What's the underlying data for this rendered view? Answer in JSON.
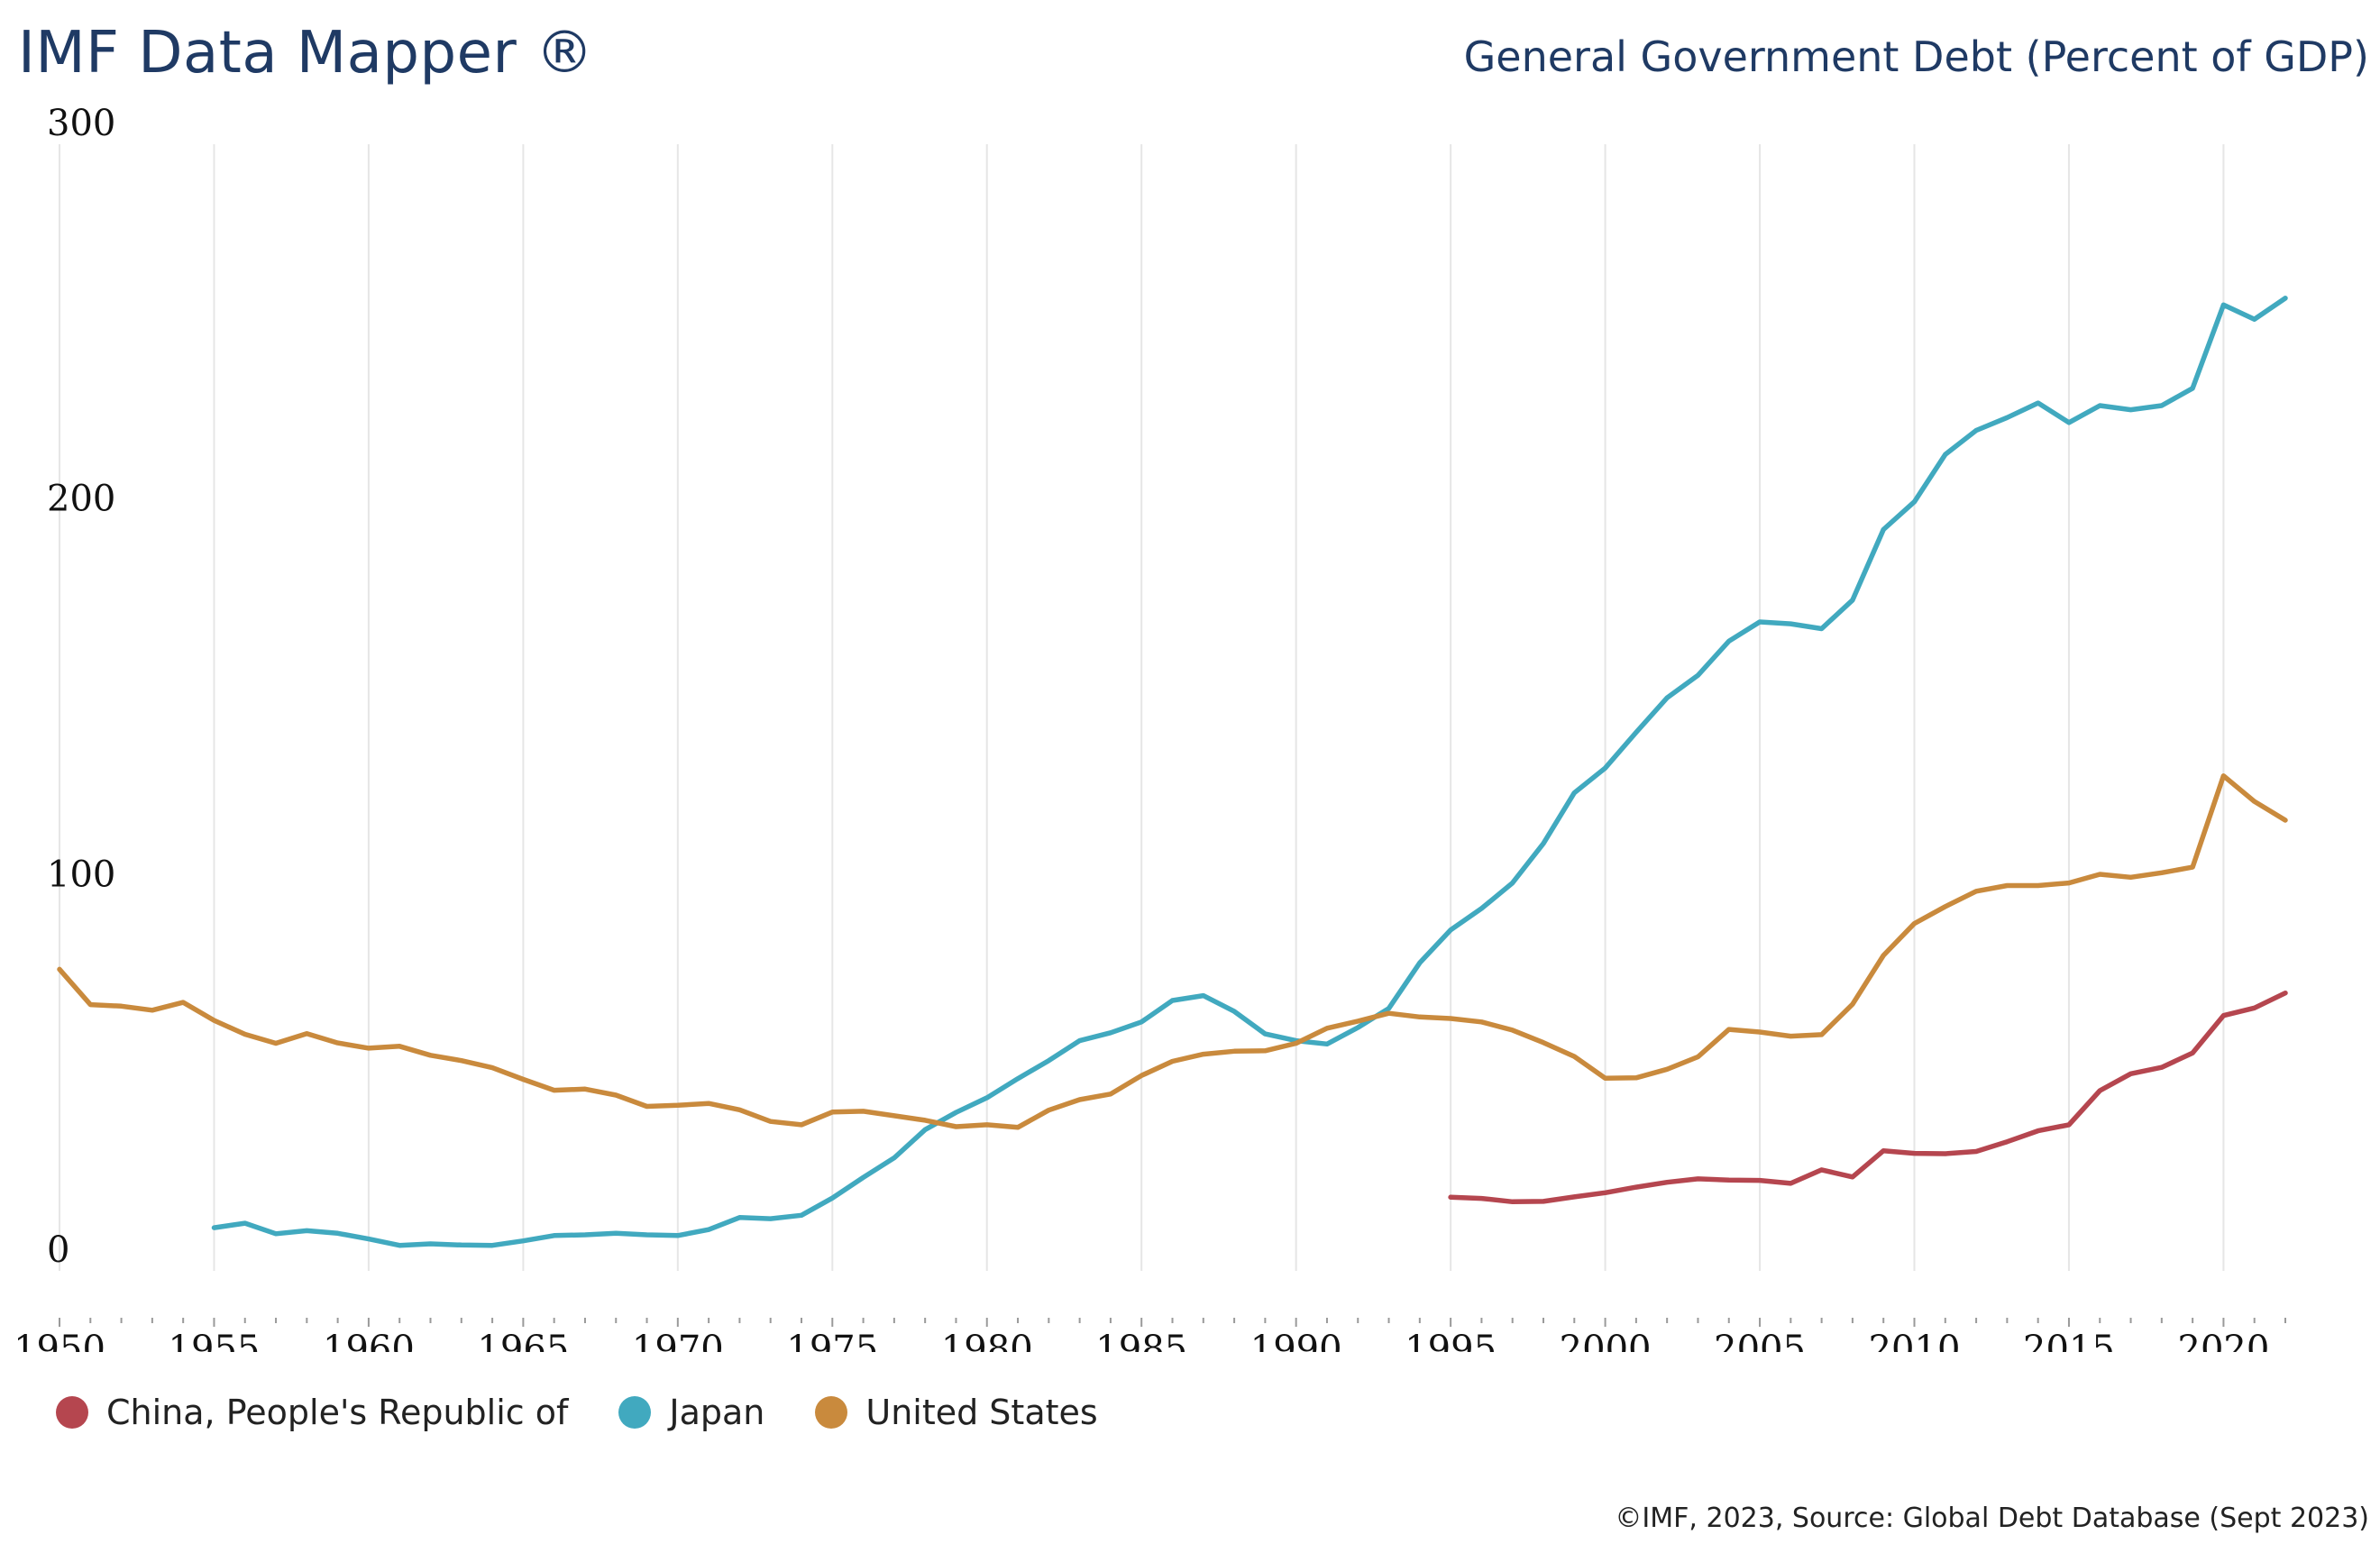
{
  "header": {
    "brand": "IMF Data Mapper ®",
    "subtitle": "General Government Debt (Percent of GDP)"
  },
  "footer": {
    "credit": "©IMF, 2023, Source: Global Debt Database (Sept 2023)"
  },
  "legend": {
    "items": [
      {
        "label": "China, People's Republic of",
        "color": "#b5464f"
      },
      {
        "label": "Japan",
        "color": "#41a9bf"
      },
      {
        "label": "United States",
        "color": "#c98a3d"
      }
    ]
  },
  "chart_data": {
    "type": "line",
    "title": "General Government Debt (Percent of GDP)",
    "xlabel": "",
    "ylabel": "",
    "xlim": [
      1950,
      2022
    ],
    "ylim": [
      0,
      300
    ],
    "grid": "vertical",
    "legend_position": "bottom-left",
    "x_ticks": [
      "1950",
      "1955",
      "1960",
      "1965",
      "1970",
      "1975",
      "1980",
      "1985",
      "1990",
      "1995",
      "2000",
      "2005",
      "2010",
      "2015",
      "2020"
    ],
    "y_ticks": [
      "0",
      "100",
      "200",
      "300"
    ],
    "series": [
      {
        "name": "China, People's Republic of",
        "color": "#b5464f",
        "start_year": 1995,
        "values": [
          19.6,
          19.3,
          18.4,
          18.5,
          19.7,
          20.8,
          22.3,
          23.6,
          24.5,
          24.2,
          24.1,
          23.3,
          26.9,
          25.0,
          32.0,
          31.3,
          31.2,
          31.8,
          34.4,
          37.3,
          38.9,
          48.0,
          52.5,
          54.2,
          58.0,
          68.0,
          70.0,
          74.0
        ]
      },
      {
        "name": "Japan",
        "color": "#41a9bf",
        "start_year": 1955,
        "values": [
          11.5,
          12.7,
          9.9,
          10.7,
          10.0,
          8.5,
          6.8,
          7.2,
          6.9,
          6.8,
          8.0,
          9.4,
          9.6,
          10.0,
          9.6,
          9.4,
          11.0,
          14.2,
          13.9,
          14.8,
          19.4,
          24.9,
          30.1,
          37.6,
          42.2,
          46.1,
          51.2,
          56.0,
          61.3,
          63.4,
          66.3,
          72.0,
          73.3,
          69.1,
          63.1,
          61.3,
          60.4,
          64.8,
          69.9,
          82.0,
          90.8,
          96.5,
          103.3,
          113.8,
          127.3,
          133.9,
          143.4,
          152.6,
          158.6,
          167.7,
          172.8,
          172.3,
          171.0,
          178.6,
          197.4,
          204.8,
          217.4,
          223.8,
          227.2,
          231.1,
          225.9,
          230.4,
          229.3,
          230.4,
          235.0,
          257.2,
          253.4,
          259.0
        ]
      },
      {
        "name": "United States",
        "color": "#c98a3d",
        "start_year": 1950,
        "values": [
          80.3,
          70.9,
          70.5,
          69.4,
          71.5,
          66.7,
          63.0,
          60.6,
          63.2,
          60.7,
          59.3,
          59.8,
          57.4,
          56.0,
          54.1,
          51.0,
          48.1,
          48.4,
          46.8,
          43.8,
          44.1,
          44.6,
          42.9,
          39.8,
          38.9,
          42.3,
          42.5,
          41.3,
          40.1,
          38.4,
          38.9,
          38.2,
          42.8,
          45.6,
          47.1,
          52.0,
          55.8,
          57.7,
          58.5,
          58.6,
          60.6,
          64.6,
          66.5,
          68.6,
          67.6,
          67.2,
          66.3,
          64.1,
          60.8,
          57.1,
          51.3,
          51.4,
          53.7,
          57.0,
          64.3,
          63.6,
          62.5,
          62.9,
          71.0,
          84.0,
          92.5,
          97.0,
          101.1,
          102.6,
          102.6,
          103.3,
          105.6,
          104.8,
          106.0,
          107.5,
          131.8,
          125.0,
          120.0
        ]
      }
    ]
  }
}
